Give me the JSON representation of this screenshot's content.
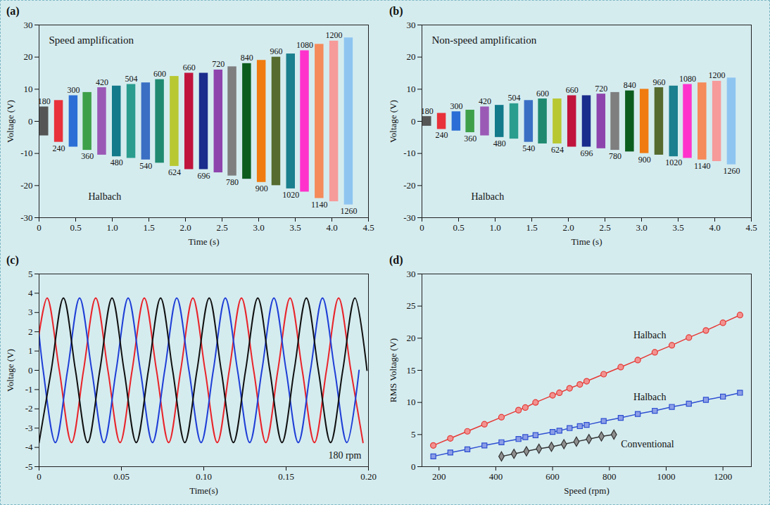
{
  "chart_data": [
    {
      "panel": "(a)",
      "type": "burst",
      "x_label": "Time (s)",
      "y_label": "Voltage (V)",
      "annotations": [
        "Speed amplification",
        "Halbach"
      ],
      "x": [
        0.07,
        0.27,
        0.47,
        0.66,
        0.86,
        1.06,
        1.26,
        1.46,
        1.65,
        1.85,
        2.05,
        2.25,
        2.45,
        2.64,
        2.84,
        3.04,
        3.24,
        3.44,
        3.63,
        3.83,
        4.03,
        4.23
      ],
      "categories": [
        180,
        240,
        300,
        360,
        420,
        480,
        504,
        540,
        600,
        624,
        660,
        696,
        720,
        780,
        840,
        900,
        960,
        1020,
        1080,
        1140,
        1200,
        1260
      ],
      "values": [
        4.5,
        6.5,
        8,
        9,
        10.5,
        11,
        11.5,
        12,
        13,
        14,
        15,
        15,
        16,
        17,
        18,
        19,
        20,
        21,
        22,
        24,
        25,
        26
      ],
      "colors": [
        "#555555",
        "#e8313a",
        "#2b6fd6",
        "#3fa04a",
        "#9b59b6",
        "#127a8a",
        "#2a9d8f",
        "#3a6fc4",
        "#1f8a70",
        "#b8c832",
        "#c0143c",
        "#1a2c8c",
        "#8e44ad",
        "#7f7f7f",
        "#0b5d1e",
        "#f07b10",
        "#556b2f",
        "#1a7f8e",
        "#ff33cc",
        "#f58a5a",
        "#f79a9a",
        "#8ec5f0"
      ],
      "xlim": [
        0,
        4.5
      ],
      "xticks": [
        0,
        0.5,
        {
          "value": 1,
          "label": "1.0"
        },
        1.5,
        {
          "value": 2,
          "label": "2.0"
        },
        2.5,
        {
          "value": 3,
          "label": "3.0"
        },
        3.5,
        {
          "value": 4,
          "label": "4.0"
        },
        4.5
      ],
      "ylim": [
        -30,
        30
      ],
      "yticks": [
        -30,
        -20,
        -10,
        0,
        10,
        20,
        30
      ]
    },
    {
      "panel": "(b)",
      "type": "burst",
      "x_label": "Time (s)",
      "y_label": "Voltage (V)",
      "annotations": [
        "Non-speed amplification",
        "Halbach"
      ],
      "x": [
        0.07,
        0.27,
        0.47,
        0.66,
        0.86,
        1.06,
        1.26,
        1.46,
        1.65,
        1.85,
        2.05,
        2.25,
        2.45,
        2.64,
        2.84,
        3.04,
        3.24,
        3.44,
        3.63,
        3.83,
        4.03,
        4.23
      ],
      "categories": [
        180,
        240,
        300,
        360,
        420,
        480,
        504,
        540,
        600,
        624,
        660,
        696,
        720,
        780,
        840,
        900,
        960,
        1020,
        1080,
        1140,
        1200,
        1260
      ],
      "values": [
        1.5,
        2.5,
        3,
        3.5,
        4.5,
        5,
        5.5,
        6.5,
        7,
        7,
        8,
        8,
        8.5,
        9,
        9.5,
        10,
        10.5,
        11,
        11.5,
        12,
        12.5,
        13.5
      ],
      "colors": [
        "#555555",
        "#e8313a",
        "#2b6fd6",
        "#3fa04a",
        "#9b59b6",
        "#127a8a",
        "#2a9d8f",
        "#3a6fc4",
        "#1f8a70",
        "#b8c832",
        "#c0143c",
        "#1a2c8c",
        "#8e44ad",
        "#7f7f7f",
        "#0b5d1e",
        "#f07b10",
        "#556b2f",
        "#1a7f8e",
        "#ff33cc",
        "#f58a5a",
        "#f79a9a",
        "#8ec5f0"
      ],
      "xlim": [
        0,
        4.5
      ],
      "xticks": [
        0,
        0.5,
        {
          "value": 1,
          "label": "1.0"
        },
        1.5,
        {
          "value": 2,
          "label": "2.0"
        },
        2.5,
        {
          "value": 3,
          "label": "3.0"
        },
        3.5,
        {
          "value": 4,
          "label": "4.0"
        },
        4.5
      ],
      "ylim": [
        -30,
        30
      ],
      "yticks": [
        -30,
        -20,
        -10,
        0,
        10,
        20,
        30
      ]
    },
    {
      "panel": "(c)",
      "type": "line",
      "x_label": "Time(s)",
      "y_label": "Voltage (V)",
      "annotations": [
        "180 rpm"
      ],
      "series": [
        {
          "color": "#e8242a",
          "x": [
            0,
            0.0049,
            0.0123,
            0.0197,
            0.027,
            0.0344,
            0.0418,
            0.0492,
            0.0565,
            0.0639,
            0.0713,
            0.0787,
            0.086,
            0.0934,
            0.1008,
            0.1082,
            0.1155,
            0.1229,
            0.1303,
            0.1377,
            0.145,
            0.1524,
            0.1598,
            0.1672,
            0.1745,
            0.1819,
            0.1893,
            0.1967
          ],
          "values": [
            1.88,
            3.75,
            0,
            -3.75,
            0,
            3.75,
            0,
            -3.75,
            0,
            3.75,
            0,
            -3.75,
            0,
            3.75,
            0,
            -3.75,
            0,
            3.75,
            0,
            -3.75,
            0,
            3.75,
            0,
            -3.75,
            0,
            3.75,
            0,
            -3.75
          ]
        },
        {
          "color": "#1f3fd6",
          "x": [
            0,
            0.0025,
            0.0099,
            0.0173,
            0.0246,
            0.032,
            0.0394,
            0.0468,
            0.0541,
            0.0615,
            0.0689,
            0.0763,
            0.0836,
            0.091,
            0.0984,
            0.1058,
            0.1131,
            0.1205,
            0.1279,
            0.1353,
            0.1426,
            0.15,
            0.1574,
            0.1648,
            0.1721,
            0.1795,
            0.1869,
            0.1943
          ],
          "values": [
            1.88,
            0,
            -3.75,
            0,
            3.75,
            0,
            -3.75,
            0,
            3.75,
            0,
            -3.75,
            0,
            3.75,
            0,
            -3.75,
            0,
            3.75,
            0,
            -3.75,
            0,
            3.75,
            0,
            -3.75,
            0,
            3.75,
            0,
            -3.75,
            0
          ]
        },
        {
          "color": "#111111",
          "x": [
            0,
            0.0074,
            0.0148,
            0.0221,
            0.0295,
            0.0369,
            0.0443,
            0.0516,
            0.059,
            0.0664,
            0.0738,
            0.0811,
            0.0885,
            0.0959,
            0.1033,
            0.1106,
            0.118,
            0.1254,
            0.1328,
            0.1401,
            0.1475,
            0.1549,
            0.1623,
            0.1696,
            0.177,
            0.1844,
            0.1918,
            0.1991
          ],
          "values": [
            -3.75,
            0,
            3.75,
            0,
            -3.75,
            0,
            3.75,
            0,
            -3.75,
            0,
            3.75,
            0,
            -3.75,
            0,
            3.75,
            0,
            -3.75,
            0,
            3.75,
            0,
            -3.75,
            0,
            3.75,
            0,
            -3.75,
            0,
            3.75,
            0
          ]
        }
      ],
      "xlim": [
        0,
        0.2
      ],
      "xticks": [
        0,
        0.05,
        {
          "value": 0.1,
          "label": "0.10"
        },
        0.15,
        {
          "value": 0.2,
          "label": "0.20"
        }
      ],
      "ylim": [
        -5,
        5
      ],
      "yticks": [
        -5,
        -4,
        -3,
        -2,
        -1,
        0,
        1,
        2,
        3,
        4,
        5
      ]
    },
    {
      "panel": "(d)",
      "type": "line",
      "x_label": "Speed (rpm)",
      "y_label": "RMS Voltage (V)",
      "series": [
        {
          "name": "Halbach",
          "color": "#e53935",
          "marker": "circle",
          "x": [
            180,
            240,
            300,
            360,
            420,
            480,
            504,
            540,
            600,
            624,
            660,
            696,
            720,
            780,
            840,
            900,
            960,
            1020,
            1080,
            1140,
            1200,
            1260
          ],
          "values": [
            3.3,
            4.4,
            5.5,
            6.6,
            7.7,
            8.8,
            9.2,
            10,
            11.1,
            11.5,
            12.2,
            12.8,
            13.3,
            14.4,
            15.5,
            16.6,
            17.8,
            18.9,
            20.1,
            21.2,
            22.4,
            23.6
          ]
        },
        {
          "name": "Halbach",
          "color": "#2e4fd1",
          "marker": "square",
          "x": [
            180,
            240,
            300,
            360,
            420,
            480,
            504,
            540,
            600,
            624,
            660,
            696,
            720,
            780,
            840,
            900,
            960,
            1020,
            1080,
            1140,
            1200,
            1260
          ],
          "values": [
            1.6,
            2.2,
            2.7,
            3.3,
            3.8,
            4.3,
            4.6,
            4.9,
            5.4,
            5.6,
            6,
            6.3,
            6.5,
            7.1,
            7.6,
            8.2,
            8.7,
            9.3,
            9.8,
            10.4,
            10.9,
            11.5
          ]
        },
        {
          "name": "Conventional",
          "color": "#333333",
          "marker": "diamond",
          "x": [
            420,
            464,
            508,
            552,
            596,
            640,
            684,
            728,
            772,
            816
          ],
          "values": [
            1.6,
            2,
            2.4,
            2.8,
            3.1,
            3.5,
            3.9,
            4.3,
            4.7,
            5
          ]
        }
      ],
      "xlim": [
        140,
        1300
      ],
      "xticks": [
        200,
        400,
        600,
        800,
        1000,
        1200
      ],
      "ylim": [
        0,
        30
      ],
      "yticks": [
        0,
        5,
        10,
        15,
        20,
        25,
        30
      ]
    }
  ]
}
